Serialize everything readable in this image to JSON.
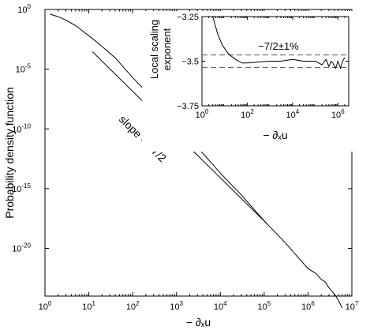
{
  "chart_data": [
    {
      "id": "main",
      "type": "line",
      "xlabel": "− ∂ₓu",
      "ylabel": "Probability density function",
      "x_scale": "log",
      "y_scale": "log",
      "xlim": [
        1,
        10000000
      ],
      "ylim": [
        1e-24,
        1
      ],
      "x_ticks": [
        {
          "value": 1,
          "base": "10",
          "exp": "0"
        },
        {
          "value": 10,
          "base": "10",
          "exp": "1"
        },
        {
          "value": 100,
          "base": "10",
          "exp": "2"
        },
        {
          "value": 1000,
          "base": "10",
          "exp": "3"
        },
        {
          "value": 10000,
          "base": "10",
          "exp": "4"
        },
        {
          "value": 100000,
          "base": "10",
          "exp": "5"
        },
        {
          "value": 1000000,
          "base": "10",
          "exp": "6"
        },
        {
          "value": 10000000,
          "base": "10",
          "exp": "7"
        }
      ],
      "y_ticks": [
        {
          "value": 1,
          "base": "10",
          "exp": "0"
        },
        {
          "value": 1e-05,
          "base": "10",
          "exp": "-5"
        },
        {
          "value": 1e-10,
          "base": "10",
          "exp": "-10"
        },
        {
          "value": 1e-15,
          "base": "10",
          "exp": "-15"
        },
        {
          "value": 1e-20,
          "base": "10",
          "exp": "-20"
        }
      ],
      "grid": false,
      "series": [
        {
          "x": [
            1.3,
            2,
            3,
            5,
            8,
            13,
            22,
            40,
            100,
            300,
            1000,
            3000,
            10000,
            30000,
            100000,
            300000,
            1000000,
            1500000,
            2000000,
            2500000,
            3000000,
            4000000,
            5000000,
            6000000
          ],
          "y": [
            0.4,
            0.25,
            0.13,
            0.045,
            0.012,
            0.003,
            0.0006,
            9e-05,
            2e-06,
            3e-08,
            2e-10,
            3e-12,
            2e-14,
            3e-16,
            2e-18,
            3e-20,
            2e-22,
            8e-23,
            2.5e-23,
            1.5e-23,
            5e-24,
            1.5e-24,
            4e-25,
            1e-25
          ]
        },
        {
          "x": [
            12,
            120000
          ],
          "y": [
            0.0003,
            1e-18
          ]
        }
      ],
      "annotations": [
        {
          "text": "slope = −7/2"
        }
      ]
    },
    {
      "id": "inset",
      "type": "line",
      "ylabel_lines": [
        "Local scaling",
        "exponent"
      ],
      "xlabel": "− ∂ₓu",
      "x_scale": "log",
      "xlim": [
        1,
        3000000
      ],
      "ylim": [
        -3.75,
        -3.25
      ],
      "x_ticks": [
        {
          "value": 1,
          "base": "10",
          "exp": "0"
        },
        {
          "value": 100,
          "base": "10",
          "exp": "2"
        },
        {
          "value": 10000,
          "base": "10",
          "exp": "4"
        },
        {
          "value": 1000000,
          "base": "10",
          "exp": "6"
        }
      ],
      "y_ticks": [
        {
          "value": -3.25,
          "label": "−3.25"
        },
        {
          "value": -3.5,
          "label": "−3.5"
        },
        {
          "value": -3.75,
          "label": "−3.75"
        }
      ],
      "reference_lines": [
        -3.465,
        -3.535
      ],
      "annotations": [
        {
          "text": "−7/2±1%"
        }
      ],
      "series": [
        {
          "x": [
            3,
            5,
            8,
            15,
            30,
            60,
            100,
            300,
            1000,
            3000,
            10000,
            30000,
            100000,
            200000,
            300000,
            400000,
            500000,
            600000,
            800000,
            1000000,
            1300000,
            1600000,
            2000000
          ],
          "y": [
            -3.25,
            -3.35,
            -3.41,
            -3.46,
            -3.49,
            -3.51,
            -3.51,
            -3.505,
            -3.5,
            -3.5,
            -3.49,
            -3.5,
            -3.5,
            -3.52,
            -3.49,
            -3.53,
            -3.5,
            -3.51,
            -3.54,
            -3.5,
            -3.54,
            -3.5,
            -3.48
          ]
        }
      ]
    }
  ]
}
